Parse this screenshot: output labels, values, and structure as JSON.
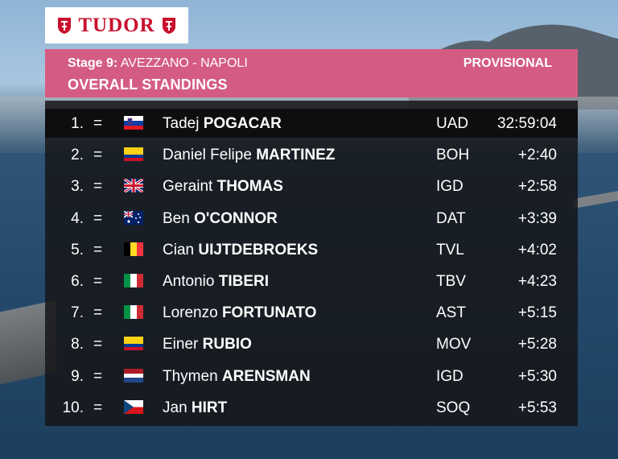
{
  "brand": {
    "logo_text": "TUDOR",
    "accent": "#c8102e"
  },
  "header": {
    "stage_prefix": "Stage 9:",
    "stage_route": "AVEZZANO - NAPOLI",
    "title": "OVERALL STANDINGS",
    "status": "PROVISIONAL",
    "color": "#d45c82"
  },
  "standings": [
    {
      "pos": "1.",
      "change": "=",
      "flag": "slovenia-flag-icon",
      "first": "Tadej",
      "last": "POGACAR",
      "team": "UAD",
      "time": "32:59:04"
    },
    {
      "pos": "2.",
      "change": "=",
      "flag": "colombia-flag-icon",
      "first": "Daniel Felipe",
      "last": "MARTINEZ",
      "team": "BOH",
      "time": "+2:40"
    },
    {
      "pos": "3.",
      "change": "=",
      "flag": "uk-flag-icon",
      "first": "Geraint",
      "last": "THOMAS",
      "team": "IGD",
      "time": "+2:58"
    },
    {
      "pos": "4.",
      "change": "=",
      "flag": "australia-flag-icon",
      "first": "Ben",
      "last": "O'CONNOR",
      "team": "DAT",
      "time": "+3:39"
    },
    {
      "pos": "5.",
      "change": "=",
      "flag": "belgium-flag-icon",
      "first": "Cian",
      "last": "UIJTDEBROEKS",
      "team": "TVL",
      "time": "+4:02"
    },
    {
      "pos": "6.",
      "change": "=",
      "flag": "italy-flag-icon",
      "first": "Antonio",
      "last": "TIBERI",
      "team": "TBV",
      "time": "+4:23"
    },
    {
      "pos": "7.",
      "change": "=",
      "flag": "italy-flag-icon",
      "first": "Lorenzo",
      "last": "FORTUNATO",
      "team": "AST",
      "time": "+5:15"
    },
    {
      "pos": "8.",
      "change": "=",
      "flag": "colombia-flag-icon",
      "first": "Einer",
      "last": "RUBIO",
      "team": "MOV",
      "time": "+5:28"
    },
    {
      "pos": "9.",
      "change": "=",
      "flag": "netherlands-flag-icon",
      "first": "Thymen",
      "last": "ARENSMAN",
      "team": "IGD",
      "time": "+5:30"
    },
    {
      "pos": "10.",
      "change": "=",
      "flag": "czechia-flag-icon",
      "first": "Jan",
      "last": "HIRT",
      "team": "SOQ",
      "time": "+5:53"
    }
  ]
}
